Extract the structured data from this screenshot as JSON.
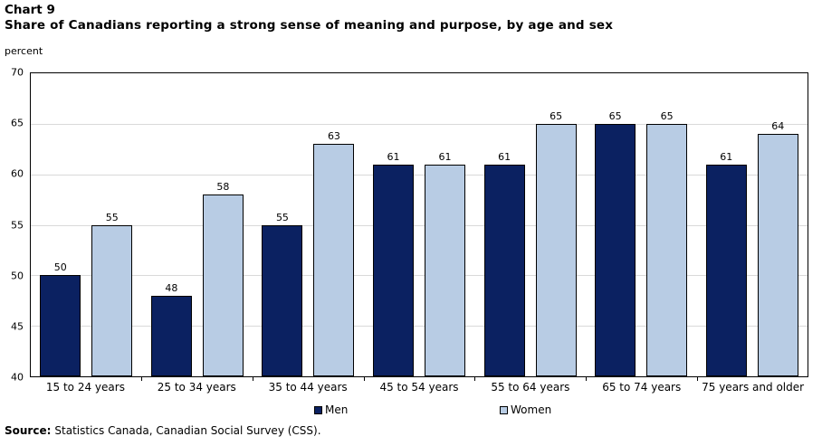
{
  "header": {
    "chart_label": "Chart 9",
    "title": "Share of Canadians reporting a strong sense of meaning and purpose, by age and sex"
  },
  "source": {
    "label": "Source:",
    "text": "Statistics Canada, Canadian Social Survey (CSS)."
  },
  "chart_data": {
    "type": "bar",
    "title": "Chart 9",
    "subtitle": "Share of Canadians reporting a strong sense of meaning and purpose, by age and sex",
    "ylabel": "percent",
    "xlabel": "",
    "ylim": [
      40,
      70
    ],
    "ytick_step": 5,
    "grid": "horizontal",
    "legend_position": "bottom",
    "categories": [
      "15 to 24 years",
      "25 to 34 years",
      "35 to 44 years",
      "45 to 54 years",
      "55 to 64 years",
      "65 to 74 years",
      "75 years and older"
    ],
    "series": [
      {
        "name": "Men",
        "color": "#0b2161",
        "values": [
          50,
          48,
          55,
          61,
          61,
          65,
          61
        ]
      },
      {
        "name": "Women",
        "color": "#b8cce4",
        "values": [
          55,
          58,
          63,
          61,
          65,
          65,
          64
        ]
      }
    ],
    "colors": {
      "bar_border": "#000000",
      "gridline": "#d9d9d9",
      "axis_border": "#000000",
      "text": "#000000"
    }
  }
}
